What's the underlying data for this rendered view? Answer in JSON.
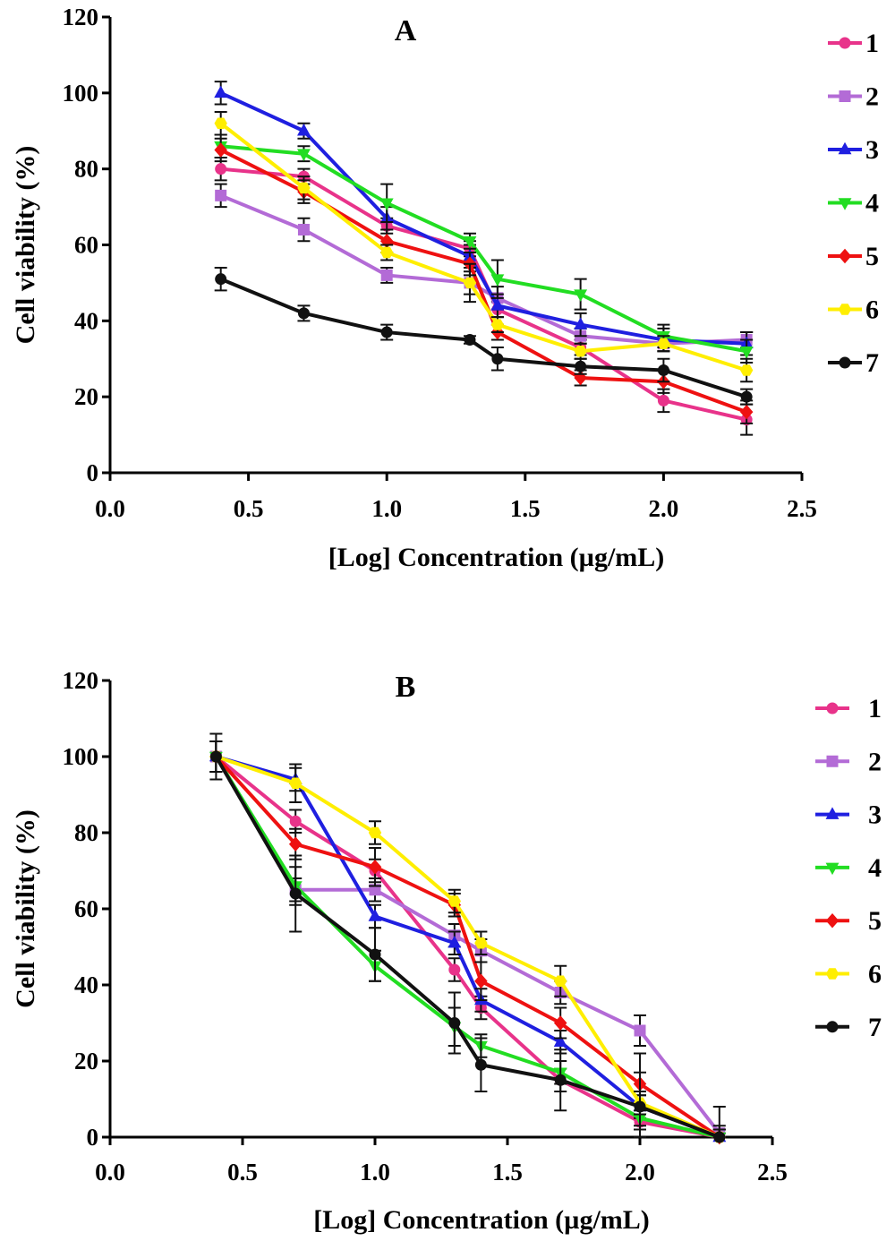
{
  "chart_data": [
    {
      "type": "line",
      "panel_label": "A",
      "xlabel": "[Log] Concentration (µg/mL)",
      "ylabel": "Cell viability (%)",
      "xlim": [
        0,
        2.5
      ],
      "ylim": [
        0,
        120
      ],
      "x_ticks": [
        "0.0",
        "0.5",
        "1.0",
        "1.5",
        "2.0",
        "2.5"
      ],
      "y_ticks": [
        "0",
        "20",
        "40",
        "60",
        "80",
        "100",
        "120"
      ],
      "grid": false,
      "legend_position": "right",
      "x": [
        0.4,
        0.7,
        1.0,
        1.3,
        1.4,
        1.7,
        2.0,
        2.3
      ],
      "series": [
        {
          "name": "1",
          "color": "#e8338a",
          "marker": "circle",
          "values": [
            80,
            78,
            65,
            59,
            43,
            33,
            19,
            14
          ],
          "errors": [
            3,
            2,
            2,
            2,
            2,
            2,
            3,
            4
          ]
        },
        {
          "name": "2",
          "color": "#b36bd6",
          "marker": "square",
          "values": [
            73,
            64,
            52,
            50,
            46,
            36,
            34,
            35
          ],
          "errors": [
            3,
            3,
            2,
            3,
            3,
            2,
            2,
            2
          ]
        },
        {
          "name": "3",
          "color": "#1f1fe0",
          "marker": "triangle-up",
          "values": [
            100,
            90,
            67,
            57,
            44,
            39,
            35,
            34
          ],
          "errors": [
            3,
            2,
            3,
            3,
            3,
            3,
            3,
            3
          ]
        },
        {
          "name": "4",
          "color": "#22dd22",
          "marker": "triangle-down",
          "values": [
            86,
            84,
            71,
            61,
            51,
            47,
            36,
            32
          ],
          "errors": [
            3,
            2,
            5,
            2,
            5,
            4,
            3,
            3
          ]
        },
        {
          "name": "5",
          "color": "#ee1111",
          "marker": "diamond",
          "values": [
            85,
            74,
            61,
            55,
            37,
            25,
            24,
            16
          ],
          "errors": [
            3,
            3,
            3,
            3,
            2,
            2,
            3,
            3
          ]
        },
        {
          "name": "6",
          "color": "#ffee00",
          "marker": "hexagon",
          "values": [
            92,
            75,
            58,
            50,
            39,
            32,
            34,
            27
          ],
          "errors": [
            3,
            3,
            2,
            5,
            2,
            2,
            2,
            3
          ]
        },
        {
          "name": "7",
          "color": "#111111",
          "marker": "circle",
          "values": [
            51,
            42,
            37,
            35,
            30,
            28,
            27,
            20
          ],
          "errors": [
            3,
            2,
            2,
            1,
            3,
            2,
            3,
            2
          ]
        }
      ]
    },
    {
      "type": "line",
      "panel_label": "B",
      "xlabel": "[Log] Concentration (µg/mL)",
      "ylabel": "Cell viability (%)",
      "xlim": [
        0,
        2.5
      ],
      "ylim": [
        0,
        120
      ],
      "x_ticks": [
        "0.0",
        "0.5",
        "1.0",
        "1.5",
        "2.0",
        "2.5"
      ],
      "y_ticks": [
        "0",
        "20",
        "40",
        "60",
        "80",
        "100",
        "120"
      ],
      "grid": false,
      "legend_position": "right",
      "x": [
        0.4,
        0.7,
        1.0,
        1.3,
        1.4,
        1.7,
        2.0,
        2.3
      ],
      "series": [
        {
          "name": "1",
          "color": "#e8338a",
          "marker": "circle",
          "values": [
            100,
            83,
            70,
            44,
            34,
            15,
            4,
            0
          ],
          "errors": [
            4,
            3,
            3,
            3,
            3,
            3,
            2,
            1
          ]
        },
        {
          "name": "2",
          "color": "#b36bd6",
          "marker": "square",
          "values": [
            100,
            65,
            65,
            53,
            49,
            38,
            28,
            1
          ],
          "errors": [
            4,
            3,
            3,
            3,
            3,
            3,
            4,
            2
          ]
        },
        {
          "name": "3",
          "color": "#1f1fe0",
          "marker": "triangle-up",
          "values": [
            100,
            94,
            58,
            51,
            36,
            25,
            8,
            0
          ],
          "errors": [
            4,
            3,
            3,
            3,
            3,
            3,
            3,
            2
          ]
        },
        {
          "name": "4",
          "color": "#22dd22",
          "marker": "triangle-down",
          "values": [
            100,
            66,
            45,
            29,
            24,
            17,
            5,
            0
          ],
          "errors": [
            4,
            5,
            4,
            5,
            3,
            3,
            2,
            2
          ]
        },
        {
          "name": "5",
          "color": "#ee1111",
          "marker": "diamond",
          "values": [
            100,
            77,
            71,
            61,
            41,
            30,
            14,
            0
          ],
          "errors": [
            4,
            4,
            5,
            3,
            5,
            4,
            3,
            2
          ]
        },
        {
          "name": "6",
          "color": "#ffee00",
          "marker": "hexagon",
          "values": [
            100,
            93,
            80,
            62,
            51,
            41,
            9,
            0
          ],
          "errors": [
            4,
            5,
            3,
            3,
            3,
            4,
            3,
            2
          ]
        },
        {
          "name": "7",
          "color": "#111111",
          "marker": "circle",
          "values": [
            100,
            64,
            48,
            30,
            19,
            15,
            8,
            0
          ],
          "errors": [
            6,
            10,
            7,
            8,
            7,
            8,
            14,
            8
          ]
        }
      ]
    }
  ]
}
